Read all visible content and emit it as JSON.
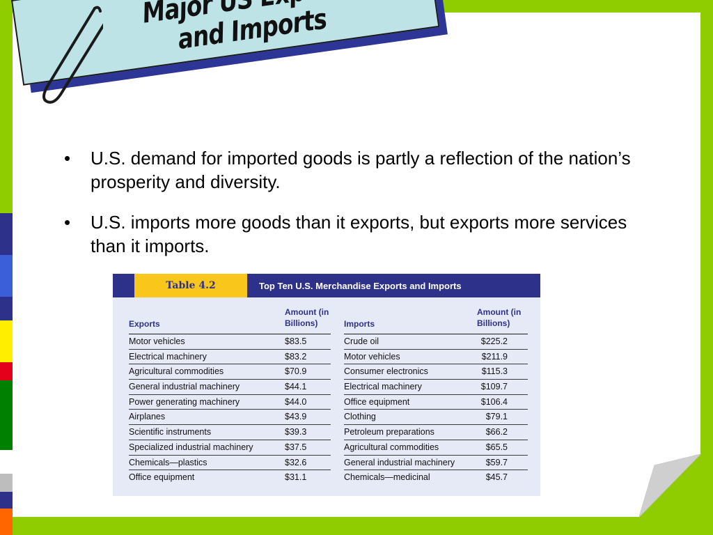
{
  "slide": {
    "title": "Major US Exports and Imports",
    "bullets": [
      "U.S. demand for imported goods is partly a reflection of the nation’s prosperity and diversity.",
      "U.S. imports more goods than it exports, but exports more services than it imports."
    ]
  },
  "colors": {
    "background_green": "#8fcc00",
    "title_card": "#bde3e6",
    "title_shadow": "#2d3596",
    "table_header": "#2e3189",
    "table_label_bg": "#f9c61b",
    "table_bg": "#e6e9f6"
  },
  "decorations": {
    "paperclip": "paperclip-icon",
    "page_curl": "page-curl-corner",
    "left_strip_colors": [
      "#2e3189",
      "#3a5fd9",
      "#2e3189",
      "#ffee00",
      "#e4001b",
      "#008000",
      "#ffffff",
      "#bdbdbd",
      "#2e3189",
      "#ff6600"
    ]
  },
  "table": {
    "label": "Table 4.2",
    "title": "Top Ten U.S. Merchandise Exports and Imports",
    "headers": {
      "exports": "Exports",
      "exports_amount": "Amount (in Billions)",
      "imports": "Imports",
      "imports_amount": "Amount (in Billions)"
    },
    "rows": [
      {
        "export": "Motor vehicles",
        "export_amount": "$83.5",
        "import": "Crude oil",
        "import_amount": "$225.2"
      },
      {
        "export": "Electrical machinery",
        "export_amount": "$83.2",
        "import": "Motor vehicles",
        "import_amount": "$211.9"
      },
      {
        "export": "Agricultural commodities",
        "export_amount": "$70.9",
        "import": "Consumer electronics",
        "import_amount": "$115.3"
      },
      {
        "export": "General industrial machinery",
        "export_amount": "$44.1",
        "import": "Electrical machinery",
        "import_amount": "$109.7"
      },
      {
        "export": "Power generating machinery",
        "export_amount": "$44.0",
        "import": "Office equipment",
        "import_amount": "$106.4"
      },
      {
        "export": "Airplanes",
        "export_amount": "$43.9",
        "import": "Clothing",
        "import_amount": "$79.1"
      },
      {
        "export": "Scientific instruments",
        "export_amount": "$39.3",
        "import": "Petroleum preparations",
        "import_amount": "$66.2"
      },
      {
        "export": "Specialized industrial machinery",
        "export_amount": "$37.5",
        "import": "Agricultural commodities",
        "import_amount": "$65.5"
      },
      {
        "export": "Chemicals—plastics",
        "export_amount": "$32.6",
        "import": "General industrial machinery",
        "import_amount": "$59.7"
      },
      {
        "export": "Office equipment",
        "export_amount": "$31.1",
        "import": "Chemicals—medicinal",
        "import_amount": "$45.7"
      }
    ]
  }
}
